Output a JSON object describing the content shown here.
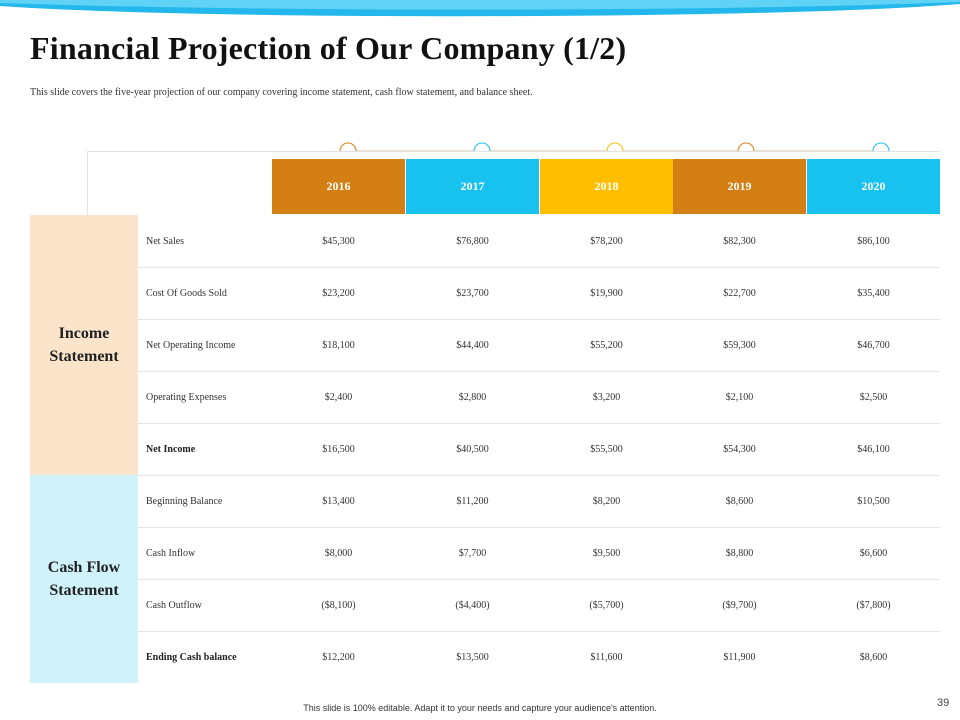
{
  "slide": {
    "title": "Financial Projection of Our Company (1/2)",
    "subtitle": "This slide covers  the five-year  projection  of our company covering  income statement, cash  flow  statement, and balance  sheet.",
    "footer": "This slide is 100% editable.  Adapt it to your needs and capture your audience's attention.",
    "page_number": "39"
  },
  "colors": {
    "orange": "#d47f14",
    "cyan": "#17c2ee",
    "gold": "#ffbe00",
    "income_bg": "#fbe4c9",
    "cashflow_bg": "#cff2fb",
    "wave": "#23b7ec"
  },
  "years": [
    "2016",
    "2017",
    "2018",
    "2019",
    "2020"
  ],
  "sections": [
    {
      "name": "Income\nStatement",
      "rows": [
        {
          "label": "Net Sales",
          "values": [
            "$45,300",
            "$76,800",
            "$78,200",
            "$82,300",
            "$86,100"
          ]
        },
        {
          "label": "Cost Of Goods Sold",
          "values": [
            "$23,200",
            "$23,700",
            "$19,900",
            "$22,700",
            "$35,400"
          ]
        },
        {
          "label": "Net Operating Income",
          "values": [
            "$18,100",
            "$44,400",
            "$55,200",
            "$59,300",
            "$46,700"
          ]
        },
        {
          "label": "Operating Expenses",
          "values": [
            "$2,400",
            "$2,800",
            "$3,200",
            "$2,100",
            "$2,500"
          ]
        },
        {
          "label": "Net Income",
          "values": [
            "$16,500",
            "$40,500",
            "$55,500",
            "$54,300",
            "$46,100"
          ]
        }
      ]
    },
    {
      "name": "Cash Flow\nStatement",
      "rows": [
        {
          "label": "Beginning Balance",
          "values": [
            "$13,400",
            "$11,200",
            "$8,200",
            "$8,600",
            "$10,500"
          ]
        },
        {
          "label": "Cash Inflow",
          "values": [
            "$8,000",
            "$7,700",
            "$9,500",
            "$8,800",
            "$6,600"
          ]
        },
        {
          "label": "Cash Outflow",
          "values": [
            "($8,100)",
            "($4,400)",
            "($5,700)",
            "($9,700)",
            "($7,800)"
          ]
        },
        {
          "label": "Ending Cash balance",
          "values": [
            "$12,200",
            "$13,500",
            "$11,600",
            "$11,900",
            "$8,600"
          ]
        }
      ]
    }
  ]
}
